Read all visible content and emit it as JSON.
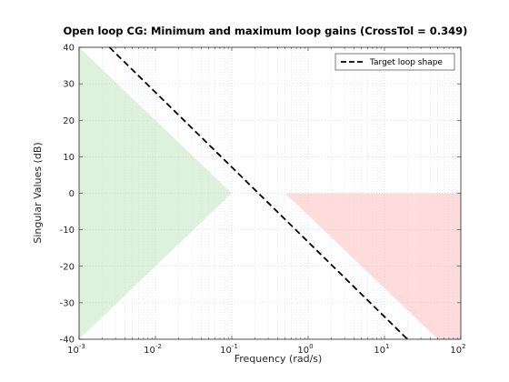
{
  "chart_data": {
    "type": "area",
    "title": "Open loop CG: Minimum and maximum loop gains (CrossTol = 0.349)",
    "xlabel": "Frequency (rad/s)",
    "ylabel": "Singular Values (dB)",
    "x_scale": "log",
    "xlim": [
      0.001,
      100
    ],
    "ylim": [
      -40,
      40
    ],
    "x_ticks": [
      0.001,
      0.01,
      0.1,
      1,
      10,
      100
    ],
    "x_tick_labels": [
      {
        "base": "10",
        "exp": "-3"
      },
      {
        "base": "10",
        "exp": "-2"
      },
      {
        "base": "10",
        "exp": "-1"
      },
      {
        "base": "10",
        "exp": "0"
      },
      {
        "base": "10",
        "exp": "1"
      },
      {
        "base": "10",
        "exp": "2"
      }
    ],
    "y_ticks": [
      -40,
      -30,
      -20,
      -10,
      0,
      10,
      20,
      30,
      40
    ],
    "y_tick_labels": [
      "-40",
      "-30",
      "-20",
      "-10",
      "0",
      "10",
      "20",
      "30",
      "40"
    ],
    "grid": true,
    "legend_position": "top-right",
    "series": [
      {
        "name": "Target loop shape",
        "style": "dashed",
        "color": "#000000",
        "x": [
          0.0025,
          20
        ],
        "y": [
          40,
          -40
        ]
      }
    ],
    "regions": [
      {
        "kind": "min-gain",
        "color": "#dcf2dc",
        "polygon": [
          [
            0.001,
            40
          ],
          [
            0.1,
            0
          ],
          [
            0.001,
            -40
          ]
        ]
      },
      {
        "kind": "max-gain",
        "color": "#ffdcdc",
        "polygon": [
          [
            0.5,
            0
          ],
          [
            100,
            0
          ],
          [
            100,
            -40
          ],
          [
            50,
            -40
          ]
        ]
      }
    ]
  }
}
